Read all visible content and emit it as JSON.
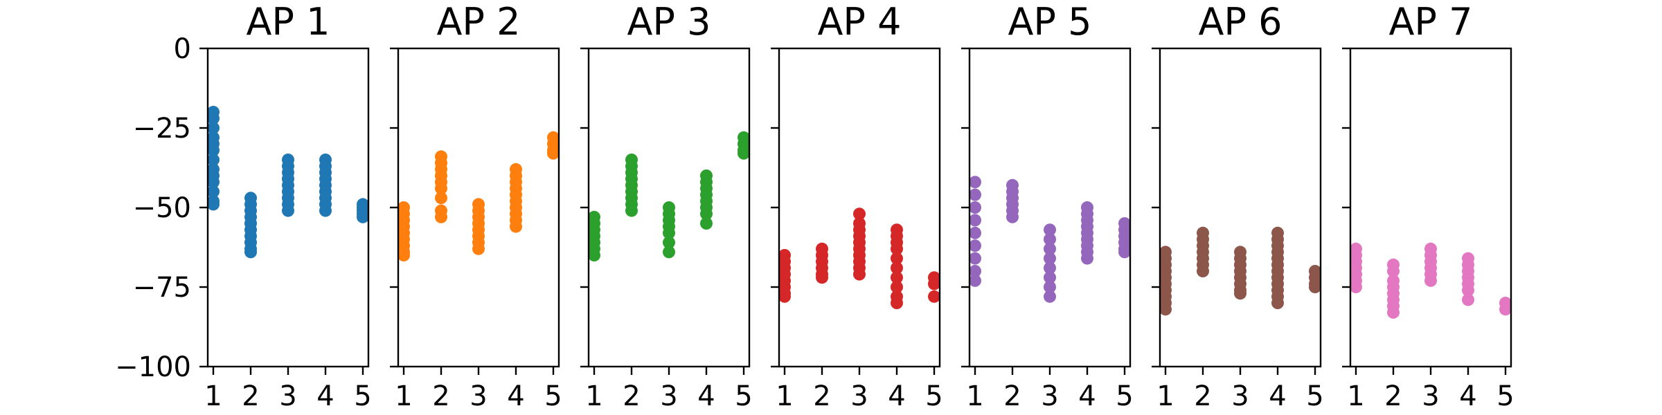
{
  "chart_data": {
    "type": "scatter",
    "ylim": [
      -100,
      0
    ],
    "yticks": [
      0,
      -25,
      -50,
      -75,
      -100
    ],
    "ytick_labels": [
      "0",
      "−25",
      "−50",
      "−75",
      "−100"
    ],
    "xticks": [
      1,
      2,
      3,
      4,
      5
    ],
    "xtick_labels": [
      "1",
      "2",
      "3",
      "4",
      "5"
    ],
    "grid": false,
    "sharey": true,
    "panels": [
      {
        "title": "AP 1",
        "color": "#1f77b4",
        "points": [
          {
            "x": 1,
            "y": [
              -20,
              -22,
              -25,
              -28,
              -30,
              -32,
              -35,
              -38,
              -40,
              -42,
              -45,
              -48,
              -49
            ]
          },
          {
            "x": 2,
            "y": [
              -47,
              -49,
              -51,
              -53,
              -55,
              -57,
              -59,
              -61,
              -63,
              -64
            ]
          },
          {
            "x": 3,
            "y": [
              -35,
              -37,
              -39,
              -41,
              -43,
              -45,
              -47,
              -49,
              -51
            ]
          },
          {
            "x": 4,
            "y": [
              -35,
              -37,
              -39,
              -41,
              -43,
              -45,
              -47,
              -49,
              -51
            ]
          },
          {
            "x": 5,
            "y": [
              -49,
              -50,
              -51,
              -52,
              -53
            ]
          }
        ]
      },
      {
        "title": "AP 2",
        "color": "#ff7f0e",
        "points": [
          {
            "x": 1,
            "y": [
              -50,
              -52,
              -54,
              -56,
              -58,
              -60,
              -62,
              -64,
              -65
            ]
          },
          {
            "x": 2,
            "y": [
              -34,
              -36,
              -38,
              -40,
              -42,
              -44,
              -47,
              -51,
              -53
            ]
          },
          {
            "x": 3,
            "y": [
              -49,
              -51,
              -53,
              -55,
              -57,
              -59,
              -61,
              -63
            ]
          },
          {
            "x": 4,
            "y": [
              -38,
              -40,
              -42,
              -44,
              -46,
              -48,
              -50,
              -52,
              -54,
              -56
            ]
          },
          {
            "x": 5,
            "y": [
              -28,
              -30,
              -32,
              -33
            ]
          }
        ]
      },
      {
        "title": "AP 3",
        "color": "#2ca02c",
        "points": [
          {
            "x": 1,
            "y": [
              -53,
              -55,
              -57,
              -59,
              -61,
              -63,
              -65
            ]
          },
          {
            "x": 2,
            "y": [
              -35,
              -37,
              -39,
              -41,
              -43,
              -45,
              -47,
              -49,
              -51
            ]
          },
          {
            "x": 3,
            "y": [
              -50,
              -52,
              -54,
              -56,
              -58,
              -61,
              -64
            ]
          },
          {
            "x": 4,
            "y": [
              -40,
              -42,
              -44,
              -46,
              -48,
              -50,
              -52,
              -55
            ]
          },
          {
            "x": 5,
            "y": [
              -28,
              -30,
              -32,
              -33
            ]
          }
        ]
      },
      {
        "title": "AP 4",
        "color": "#d62728",
        "points": [
          {
            "x": 1,
            "y": [
              -65,
              -67,
              -69,
              -71,
              -73,
              -75,
              -77,
              -78
            ]
          },
          {
            "x": 2,
            "y": [
              -63,
              -65,
              -67,
              -69,
              -71,
              -72
            ]
          },
          {
            "x": 3,
            "y": [
              -52,
              -55,
              -57,
              -59,
              -61,
              -63,
              -65,
              -67,
              -69,
              -71
            ]
          },
          {
            "x": 4,
            "y": [
              -57,
              -59,
              -61,
              -63,
              -66,
              -69,
              -72,
              -75,
              -78,
              -80
            ]
          },
          {
            "x": 5,
            "y": [
              -72,
              -74,
              -78
            ]
          }
        ]
      },
      {
        "title": "AP 5",
        "color": "#9467bd",
        "points": [
          {
            "x": 1,
            "y": [
              -42,
              -46,
              -50,
              -54,
              -58,
              -62,
              -66,
              -70,
              -73
            ]
          },
          {
            "x": 2,
            "y": [
              -43,
              -45,
              -47,
              -49,
              -51,
              -53
            ]
          },
          {
            "x": 3,
            "y": [
              -57,
              -60,
              -63,
              -66,
              -69,
              -72,
              -75,
              -78
            ]
          },
          {
            "x": 4,
            "y": [
              -50,
              -52,
              -54,
              -56,
              -58,
              -60,
              -62,
              -64,
              -66
            ]
          },
          {
            "x": 5,
            "y": [
              -55,
              -57,
              -59,
              -61,
              -63,
              -64
            ]
          }
        ]
      },
      {
        "title": "AP 6",
        "color": "#8c564b",
        "points": [
          {
            "x": 1,
            "y": [
              -64,
              -66,
              -68,
              -70,
              -72,
              -74,
              -76,
              -78,
              -80,
              -82
            ]
          },
          {
            "x": 2,
            "y": [
              -58,
              -60,
              -62,
              -64,
              -66,
              -68,
              -70
            ]
          },
          {
            "x": 3,
            "y": [
              -64,
              -66,
              -68,
              -70,
              -72,
              -74,
              -76,
              -77
            ]
          },
          {
            "x": 4,
            "y": [
              -58,
              -60,
              -62,
              -64,
              -66,
              -68,
              -70,
              -72,
              -74,
              -76,
              -78,
              -80
            ]
          },
          {
            "x": 5,
            "y": [
              -70,
              -72,
              -74,
              -75
            ]
          }
        ]
      },
      {
        "title": "AP 7",
        "color": "#e377c2",
        "points": [
          {
            "x": 1,
            "y": [
              -63,
              -65,
              -67,
              -69,
              -71,
              -73,
              -75
            ]
          },
          {
            "x": 2,
            "y": [
              -68,
              -70,
              -73,
              -75,
              -77,
              -79,
              -81,
              -83
            ]
          },
          {
            "x": 3,
            "y": [
              -63,
              -65,
              -67,
              -69,
              -71,
              -73
            ]
          },
          {
            "x": 4,
            "y": [
              -66,
              -68,
              -70,
              -72,
              -74,
              -76,
              -79
            ]
          },
          {
            "x": 5,
            "y": [
              -80,
              -82
            ]
          }
        ]
      }
    ]
  }
}
